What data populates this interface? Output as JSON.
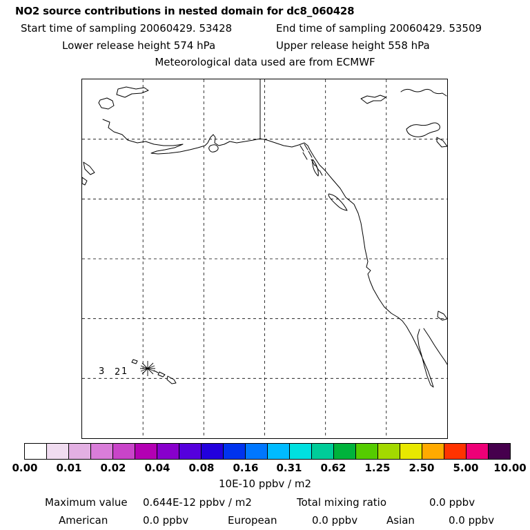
{
  "header": {
    "title": "NO2 source contributions in nested domain for dc8_060428",
    "start_time": "Start time of sampling 20060429. 53428",
    "end_time": "End time of sampling 20060429. 53509",
    "lower_release": "Lower release height  574 hPa",
    "upper_release": "Upper release height  558 hPa",
    "met_source": "Meteorological data used are from ECMWF"
  },
  "map": {
    "waypoint_labels": [
      "3",
      "2",
      "1"
    ]
  },
  "colorbar": {
    "colors": [
      "#ffffff",
      "#f0dcf0",
      "#e3b0e3",
      "#d97dd9",
      "#c944c9",
      "#b300b3",
      "#8800cc",
      "#5500dd",
      "#2200dd",
      "#0033ee",
      "#0077ff",
      "#00bbff",
      "#00e0e0",
      "#00cc99",
      "#00b33c",
      "#55cc00",
      "#a3d900",
      "#e8e800",
      "#ffaa00",
      "#ff3300",
      "#ee0077",
      "#46004d"
    ],
    "tick_labels": [
      "0.00",
      "0.01",
      "0.02",
      "0.04",
      "0.08",
      "0.16",
      "0.31",
      "0.62",
      "1.25",
      "2.50",
      "5.00",
      "10.00"
    ],
    "unit": "10E-10 ppbv / m2"
  },
  "stats": {
    "maximum_label": "Maximum value",
    "maximum_value": "0.644E-12 ppbv / m2",
    "total_label": "Total mixing ratio",
    "total_value": "0.0 ppbv",
    "american_label": "American",
    "american_value": "0.0 ppbv",
    "european_label": "European",
    "european_value": "0.0 ppbv",
    "asian_label": "Asian",
    "asian_value": "0.0 ppbv"
  },
  "chart_data": {
    "type": "heatmap",
    "title": "NO2 source contributions in nested domain for dc8_060428",
    "sampling": {
      "start": "20060429. 53428",
      "end": "20060429. 53509"
    },
    "release_heights_hPa": {
      "lower": 574,
      "upper": 558
    },
    "meteorology": "ECMWF",
    "colorbar": {
      "tick_values": [
        0.0,
        0.01,
        0.02,
        0.04,
        0.08,
        0.16,
        0.31,
        0.62,
        1.25,
        2.5,
        5.0,
        10.0
      ],
      "unit": "10E-10 ppbv / m2",
      "scale": "doubling intervals"
    },
    "maximum_value": "0.644E-12 ppbv / m2",
    "total_mixing_ratio": "0.0 ppbv",
    "source_contributions": [
      {
        "name": "American",
        "value": "0.0 ppbv"
      },
      {
        "name": "European",
        "value": "0.0 ppbv"
      },
      {
        "name": "Asian",
        "value": "0.0 ppbv"
      }
    ],
    "map_waypoints": [
      "3",
      "2",
      "1"
    ],
    "visible_field": "no filled contribution cells visible; map shows coastlines of Alaska, western North America, Hawaii, dashed lat/lon grid, receptor star marker near Hawaii"
  }
}
